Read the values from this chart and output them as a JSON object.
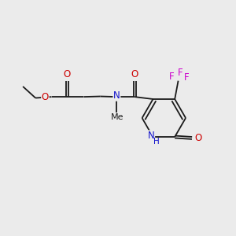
{
  "bg_color": "#ebebeb",
  "bond_color": "#1a1a1a",
  "O_color": "#cc0000",
  "N_color": "#1111cc",
  "F_color": "#cc00cc",
  "figsize": [
    3.0,
    3.0
  ],
  "dpi": 100,
  "xlim": [
    0,
    10
  ],
  "ylim": [
    0,
    10
  ]
}
